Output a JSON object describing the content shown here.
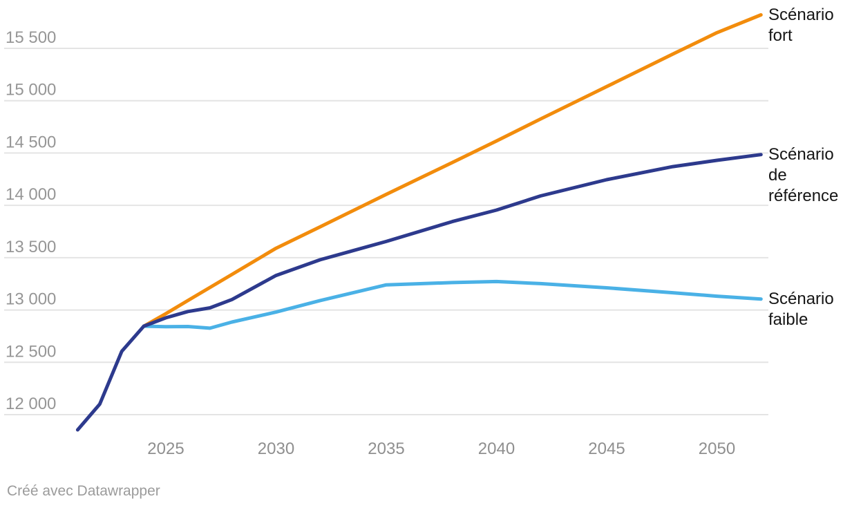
{
  "footer": {
    "credit": "Créé avec Datawrapper"
  },
  "chart_data": {
    "type": "line",
    "title": "",
    "xlabel": "",
    "ylabel": "",
    "grid": "horizontal",
    "legend_position": "direct-labels-right",
    "xlim": [
      2021,
      2052
    ],
    "ylim": [
      11800,
      15900
    ],
    "x_ticks": [
      {
        "value": 2025,
        "label": "2025"
      },
      {
        "value": 2030,
        "label": "2030"
      },
      {
        "value": 2035,
        "label": "2035"
      },
      {
        "value": 2040,
        "label": "2040"
      },
      {
        "value": 2045,
        "label": "2045"
      },
      {
        "value": 2050,
        "label": "2050"
      }
    ],
    "y_ticks": [
      {
        "value": 12000,
        "label": "12 000"
      },
      {
        "value": 12500,
        "label": "12 500"
      },
      {
        "value": 13000,
        "label": "13 000"
      },
      {
        "value": 13500,
        "label": "13 500"
      },
      {
        "value": 14000,
        "label": "14 000"
      },
      {
        "value": 14500,
        "label": "14 500"
      },
      {
        "value": 15000,
        "label": "15 000"
      },
      {
        "value": 15500,
        "label": "15 500"
      }
    ],
    "grid_color": "#e4e4e4",
    "series": [
      {
        "id": "fort",
        "name": "Scénario fort",
        "color": "#F28C0C",
        "points": [
          [
            2024,
            12845
          ],
          [
            2025,
            12965
          ],
          [
            2026,
            13090
          ],
          [
            2027,
            13215
          ],
          [
            2028,
            13340
          ],
          [
            2030,
            13590
          ],
          [
            2032,
            13795
          ],
          [
            2035,
            14105
          ],
          [
            2038,
            14410
          ],
          [
            2040,
            14615
          ],
          [
            2042,
            14825
          ],
          [
            2045,
            15135
          ],
          [
            2048,
            15445
          ],
          [
            2050,
            15650
          ],
          [
            2052,
            15820
          ]
        ]
      },
      {
        "id": "reference",
        "name": "Scénario de référence",
        "color": "#2D3A8D",
        "points": [
          [
            2021,
            11855
          ],
          [
            2022,
            12100
          ],
          [
            2023,
            12605
          ],
          [
            2024,
            12845
          ],
          [
            2025,
            12925
          ],
          [
            2026,
            12985
          ],
          [
            2027,
            13020
          ],
          [
            2028,
            13100
          ],
          [
            2030,
            13330
          ],
          [
            2032,
            13480
          ],
          [
            2035,
            13655
          ],
          [
            2038,
            13845
          ],
          [
            2040,
            13955
          ],
          [
            2042,
            14090
          ],
          [
            2045,
            14245
          ],
          [
            2048,
            14370
          ],
          [
            2050,
            14430
          ],
          [
            2052,
            14485
          ]
        ]
      },
      {
        "id": "faible",
        "name": "Scénario faible",
        "color": "#4AB1E6",
        "points": [
          [
            2024,
            12845
          ],
          [
            2025,
            12840
          ],
          [
            2026,
            12842
          ],
          [
            2027,
            12826
          ],
          [
            2028,
            12885
          ],
          [
            2030,
            12980
          ],
          [
            2032,
            13090
          ],
          [
            2035,
            13240
          ],
          [
            2038,
            13262
          ],
          [
            2040,
            13272
          ],
          [
            2042,
            13252
          ],
          [
            2045,
            13212
          ],
          [
            2048,
            13165
          ],
          [
            2050,
            13132
          ],
          [
            2052,
            13105
          ]
        ]
      }
    ]
  }
}
